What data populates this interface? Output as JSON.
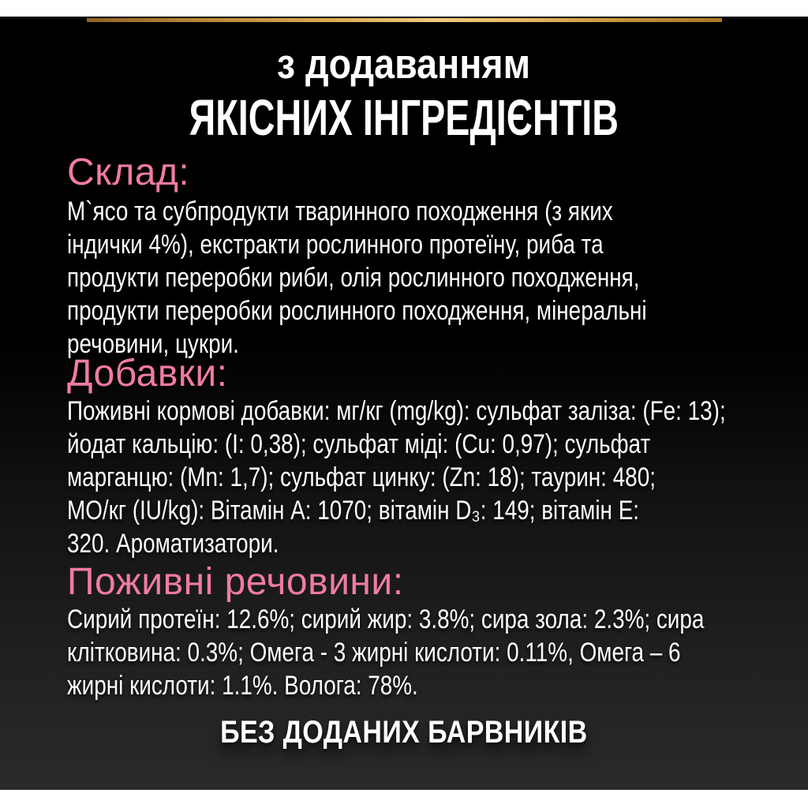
{
  "page": {
    "title": {
      "line1": "з додаванням",
      "line2": "ЯКІСНИХ ІНГРЕДІЄНТІВ"
    },
    "sections": [
      {
        "heading": "Склад:",
        "lines": [
          "М`ясо та субпродукти тваринного походження (з яких",
          "індички 4%), екстракти рослинного протеїну, риба та",
          "продукти переробки риби, олія рослинного походження,",
          "продукти переробки рослинного походження, мінеральні",
          "речовини, цукри."
        ]
      },
      {
        "heading": "Добавки:",
        "lines": [
          "Поживні кормові добавки: мг/кг (mg/kg): сульфат заліза: (Fe: 13);",
          "йодат кальцію: (I: 0,38); сульфат міді: (Cu: 0,97); сульфат",
          "марганцю: (Mn: 1,7); сульфат цинку: (Zn: 18); таурин: 480;",
          "МО/кг (IU/kg): Вітамін А: 1070; вітамін D₃: 149; вітамін Е:",
          "320. Ароматизатори."
        ]
      },
      {
        "heading": "Поживні речовини:",
        "lines": [
          "Сирий протеїн: 12.6%; сирий жир: 3.8%; сира зола: 2.3%; сира",
          "клітковина: 0.3%; Омега - 3 жирні кислоти: 0.11%, Омега – 6",
          "жирні кислоти: 1.1%. Волога: 78%."
        ]
      }
    ],
    "footer": "БЕЗ ДОДАНИХ БАРВНИКІВ",
    "colors": {
      "accent_pink": "#f07ba4",
      "gold_dark": "#8f6122",
      "gold_light": "#f0ca7e",
      "background_top": "#000000",
      "background_bottom": "#2a2a2c",
      "text": "#ffffff",
      "border_strips": "#ffffff"
    }
  }
}
